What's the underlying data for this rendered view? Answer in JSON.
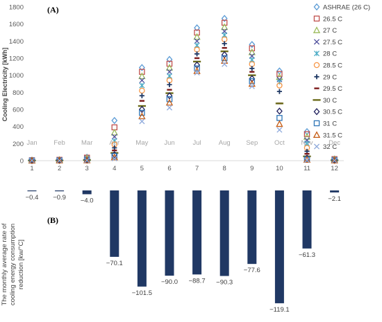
{
  "chart_data": [
    {
      "type": "scatter",
      "panel_label": "(A)",
      "ylabel": "Cooling Electricity [kWh]",
      "ylim": [
        0,
        1800
      ],
      "yticks": [
        0,
        200,
        400,
        600,
        800,
        1000,
        1200,
        1400,
        1600,
        1800
      ],
      "x": [
        1,
        2,
        3,
        4,
        5,
        6,
        7,
        8,
        9,
        10,
        11,
        12
      ],
      "month_labels": [
        "Jan",
        "Feb",
        "Mar",
        "Apr",
        "May",
        "Jun",
        "Jul",
        "Aug",
        "Sep",
        "Oct",
        "Nov",
        "Dec"
      ],
      "grid": "none",
      "legend_position": "right",
      "series": [
        {
          "name": "ASHRAE (26 C)",
          "color": "#5b9bd5",
          "marker": "diamond",
          "values": [
            5,
            10,
            40,
            470,
            1090,
            1185,
            1555,
            1665,
            1360,
            1050,
            340,
            20
          ]
        },
        {
          "name": "26.5 C",
          "color": "#c0504d",
          "marker": "square",
          "values": [
            5,
            10,
            35,
            390,
            1040,
            1135,
            1500,
            1615,
            1315,
            1015,
            310,
            18
          ]
        },
        {
          "name": "27 C",
          "color": "#9bbb59",
          "marker": "triangle",
          "values": [
            4,
            9,
            30,
            330,
            990,
            1090,
            1450,
            1565,
            1270,
            980,
            280,
            16
          ]
        },
        {
          "name": "27.5 C",
          "color": "#4f4f9c",
          "marker": "x",
          "values": [
            4,
            8,
            25,
            280,
            940,
            1040,
            1400,
            1515,
            1225,
            950,
            240,
            14
          ]
        },
        {
          "name": "28 C",
          "color": "#4bacc6",
          "marker": "xstar",
          "values": [
            3,
            7,
            20,
            230,
            880,
            990,
            1350,
            1470,
            1180,
            920,
            200,
            12
          ]
        },
        {
          "name": "28.5 C",
          "color": "#f79646",
          "marker": "circle",
          "values": [
            3,
            6,
            15,
            190,
            820,
            940,
            1300,
            1420,
            1130,
            880,
            150,
            10
          ]
        },
        {
          "name": "29 C",
          "color": "#1f3864",
          "marker": "plus",
          "values": [
            2,
            5,
            12,
            150,
            760,
            890,
            1250,
            1370,
            1080,
            810,
            110,
            8
          ]
        },
        {
          "name": "29.5 C",
          "color": "#7b1818",
          "marker": "dash",
          "values": [
            2,
            4,
            10,
            120,
            700,
            830,
            1200,
            1320,
            1040,
            670,
            80,
            6
          ]
        },
        {
          "name": "30 C",
          "color": "#6b6b1a",
          "marker": "longdash",
          "values": [
            2,
            3,
            8,
            90,
            640,
            790,
            1160,
            1280,
            1000,
            670,
            50,
            5
          ]
        },
        {
          "name": "30.5 C",
          "color": "#1f1f5c",
          "marker": "diamond-open",
          "values": [
            1,
            3,
            6,
            70,
            600,
            760,
            1120,
            1240,
            960,
            580,
            30,
            4
          ]
        },
        {
          "name": "31 C",
          "color": "#2e75b6",
          "marker": "square-open",
          "values": [
            1,
            2,
            5,
            55,
            560,
            720,
            1080,
            1200,
            930,
            500,
            15,
            3
          ]
        },
        {
          "name": "31.5 C",
          "color": "#c55a11",
          "marker": "triangle-open",
          "values": [
            1,
            2,
            4,
            40,
            520,
            680,
            1050,
            1170,
            900,
            430,
            10,
            2
          ]
        },
        {
          "name": "32 C",
          "color": "#8faadc",
          "marker": "x",
          "values": [
            1,
            1,
            3,
            25,
            460,
            620,
            1030,
            1130,
            870,
            360,
            5,
            2
          ]
        }
      ]
    },
    {
      "type": "bar",
      "panel_label": "(B)",
      "ylabel_line1": "The monthly average rate of",
      "ylabel_line2": "cooling energy consumption",
      "ylabel_line3": "reduction [kw/°C]",
      "categories": [
        1,
        2,
        3,
        4,
        5,
        6,
        7,
        8,
        9,
        10,
        11,
        12
      ],
      "values": [
        -0.4,
        -0.9,
        -4.0,
        -70.1,
        -101.5,
        -90.0,
        -88.7,
        -90.3,
        -77.6,
        -119.1,
        -61.3,
        -2.1
      ],
      "value_labels": [
        "−0.4",
        "−0.9",
        "−4.0",
        "−70.1",
        "−101.5",
        "−90.0",
        "−88.7",
        "−90.3",
        "−77.6",
        "−119.1",
        "−61.3",
        "−2.1"
      ],
      "ylim": [
        -125,
        0
      ],
      "color": "#203864"
    }
  ]
}
